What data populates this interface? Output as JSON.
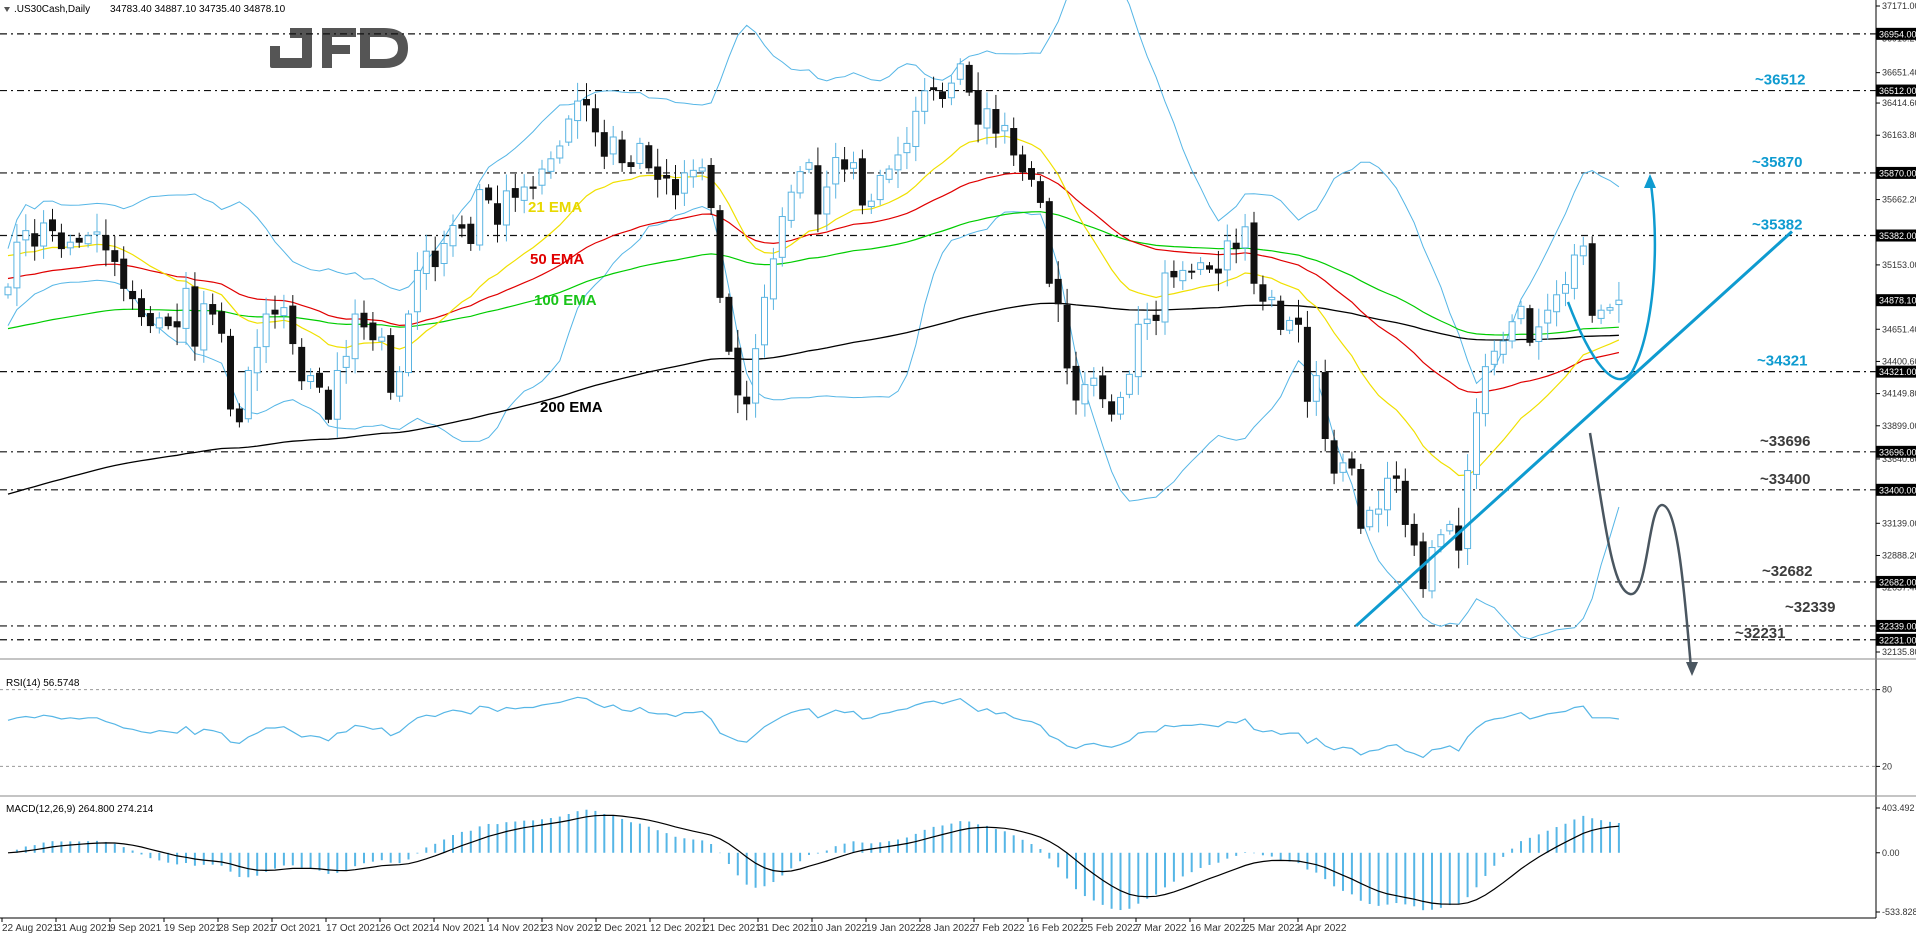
{
  "header": {
    "symbol": ".US30Cash,Daily",
    "ohlc": "34783.40 34887.10 34735.40 34878.10",
    "brand": "JFD"
  },
  "colors": {
    "bull_candle": "#5ab4e2",
    "bear_candle": "#111111",
    "ema21": "#f0e000",
    "ema50": "#e00000",
    "ema100": "#00cc00",
    "ema200": "#000000",
    "bollinger": "#56b6e6",
    "forecast_up": "#0e9bd0",
    "forecast_down": "#4a5660",
    "trendline": "#0e9bd0",
    "level_label_up": "#0e9bd0",
    "level_label_down": "#3c3c3c"
  },
  "chart_data": [
    {
      "type": "candlestick",
      "title": ".US30Cash,Daily",
      "ylim": [
        32135.8,
        37171.0
      ],
      "y_ticks": [
        "37171.00",
        "36954.00",
        "36918.20",
        "36651.40",
        "36512.00",
        "36414.60",
        "36163.80",
        "35870.00",
        "35662.20",
        "35382.00",
        "35153.00",
        "34878.10",
        "34651.40",
        "34400.60",
        "34321.00",
        "34149.80",
        "33899.00",
        "33696.00",
        "33640.60",
        "33400.00",
        "33139.00",
        "32888.20",
        "32682.00",
        "32637.40",
        "32339.00",
        "32231.00",
        "32135.80"
      ],
      "x_tick_labels": [
        "22 Aug 2021",
        "31 Aug 2021",
        "9 Sep 2021",
        "19 Sep 2021",
        "28 Sep 2021",
        "7 Oct 2021",
        "17 Oct 2021",
        "26 Oct 2021",
        "4 Nov 2021",
        "14 Nov 2021",
        "23 Nov 2021",
        "2 Dec 2021",
        "12 Dec 2021",
        "21 Dec 2021",
        "31 Dec 2021",
        "10 Jan 2022",
        "19 Jan 2022",
        "28 Jan 2022",
        "7 Feb 2022",
        "16 Feb 2022",
        "25 Feb 2022",
        "7 Mar 2022",
        "16 Mar 2022",
        "25 Mar 2022",
        "4 Apr 2022"
      ],
      "horizontal_levels": [
        {
          "value": 36954.0,
          "box": "36954.00"
        },
        {
          "value": 36512.0,
          "box": "36512.00",
          "label": "~36512",
          "side": "up"
        },
        {
          "value": 35870.0,
          "box": "35870.00",
          "label": "~35870",
          "side": "up"
        },
        {
          "value": 35382.0,
          "box": "35382.00",
          "label": "~35382",
          "side": "up"
        },
        {
          "value": 34321.0,
          "box": "34321.00",
          "label": "~34321",
          "side": "up"
        },
        {
          "value": 33696.0,
          "box": "33696.00",
          "label": "~33696",
          "side": "down"
        },
        {
          "value": 33400.0,
          "box": "33400.00",
          "label": "~33400",
          "side": "down"
        },
        {
          "value": 32682.0,
          "box": "32682.00",
          "label": "~32682",
          "side": "down"
        },
        {
          "value": 32339.0,
          "box": "32339.00",
          "label": "~32339",
          "side": "down"
        },
        {
          "value": 32231.0,
          "box": "32231.00",
          "label": "~32231",
          "side": "down"
        }
      ],
      "current_price": {
        "value": 34878.1,
        "label": "34878.10"
      },
      "indicator_labels": {
        "ema21": "21 EMA",
        "ema50": "50 EMA",
        "ema100": "100 EMA",
        "ema200": "200 EMA"
      },
      "closes": [
        34980,
        35330,
        35420,
        35300,
        35480,
        35420,
        35280,
        35330,
        35330,
        35380,
        35410,
        35270,
        35180,
        34970,
        34890,
        34750,
        34680,
        34740,
        34680,
        34670,
        34970,
        34520,
        34850,
        34770,
        34620,
        34030,
        33930,
        34330,
        34510,
        34770,
        34770,
        34820,
        34540,
        34250,
        34290,
        34200,
        33950,
        34330,
        34440,
        34770,
        34670,
        34570,
        34590,
        34160,
        34320,
        34770,
        35110,
        35260,
        35140,
        35320,
        35460,
        35440,
        35320,
        35740,
        35660,
        35470,
        35730,
        35680,
        35760,
        35750,
        35900,
        35980,
        36080,
        36290,
        36430,
        36400,
        36190,
        36000,
        36150,
        35950,
        35920,
        36100,
        35910,
        35820,
        35830,
        35700,
        35870,
        35890,
        35910,
        35600,
        34900,
        34480,
        34140,
        34070,
        34500,
        34900,
        35200,
        35530,
        35720,
        35880,
        35950,
        35550,
        35760,
        35990,
        35900,
        35950,
        35620,
        35650,
        35850,
        35900,
        36010,
        36100,
        36350,
        36510,
        36520,
        36450,
        36570,
        36720,
        36500,
        36250,
        36370,
        36180,
        36240,
        36010,
        35880,
        35820,
        35640,
        35010,
        34850,
        34350,
        34100,
        34220,
        34270,
        34110,
        33990,
        34120,
        34300,
        34690,
        34730,
        34720,
        35090,
        35060,
        35110,
        35100,
        35170,
        35120,
        35090,
        35340,
        35280,
        35450,
        35010,
        34870,
        34900,
        34650,
        34720,
        34690,
        34090,
        34290,
        33800,
        33530,
        33610,
        33570,
        33100,
        33240,
        33250,
        33490,
        33490,
        33130,
        32970,
        32630,
        32950,
        33050,
        33130,
        32930,
        33550,
        34000,
        34360,
        34480,
        34560,
        34710,
        34830,
        34550,
        34670,
        34800,
        34920,
        35000,
        35230,
        35300,
        34760,
        34800,
        34820,
        34878
      ]
    },
    {
      "type": "line",
      "title": "RSI(14) 56.5748",
      "ylim": [
        0,
        100
      ],
      "y_ticks": [
        "80",
        "20"
      ],
      "values": [
        56,
        58,
        59,
        58,
        60,
        59,
        57,
        58,
        57,
        58,
        58,
        55,
        53,
        50,
        49,
        47,
        46,
        48,
        47,
        46,
        51,
        45,
        49,
        48,
        46,
        39,
        38,
        43,
        46,
        50,
        50,
        51,
        47,
        43,
        44,
        43,
        40,
        46,
        47,
        52,
        51,
        49,
        50,
        44,
        47,
        53,
        58,
        60,
        59,
        62,
        64,
        63,
        61,
        67,
        66,
        63,
        66,
        65,
        66,
        66,
        68,
        69,
        70,
        72,
        74,
        73,
        69,
        66,
        68,
        64,
        63,
        66,
        62,
        61,
        61,
        59,
        62,
        62,
        63,
        57,
        46,
        43,
        40,
        39,
        45,
        51,
        55,
        59,
        62,
        64,
        65,
        58,
        61,
        64,
        62,
        63,
        57,
        58,
        61,
        62,
        64,
        65,
        68,
        70,
        71,
        69,
        71,
        73,
        68,
        63,
        65,
        61,
        62,
        58,
        56,
        55,
        52,
        44,
        41,
        36,
        34,
        37,
        38,
        36,
        35,
        37,
        40,
        46,
        47,
        47,
        52,
        51,
        52,
        52,
        53,
        52,
        51,
        55,
        54,
        57,
        49,
        47,
        48,
        45,
        46,
        46,
        38,
        42,
        36,
        33,
        35,
        34,
        29,
        32,
        33,
        36,
        37,
        32,
        30,
        27,
        33,
        34,
        36,
        32,
        43,
        50,
        55,
        57,
        58,
        60,
        62,
        57,
        59,
        61,
        62,
        63,
        66,
        67,
        58,
        58,
        58,
        57
      ]
    },
    {
      "type": "line",
      "title": "MACD(12,26,9) 264.800 274.214",
      "ylim": [
        -533.828,
        403.492
      ],
      "y_ticks": [
        "403.492",
        "0.00",
        "-533.828"
      ]
    }
  ]
}
